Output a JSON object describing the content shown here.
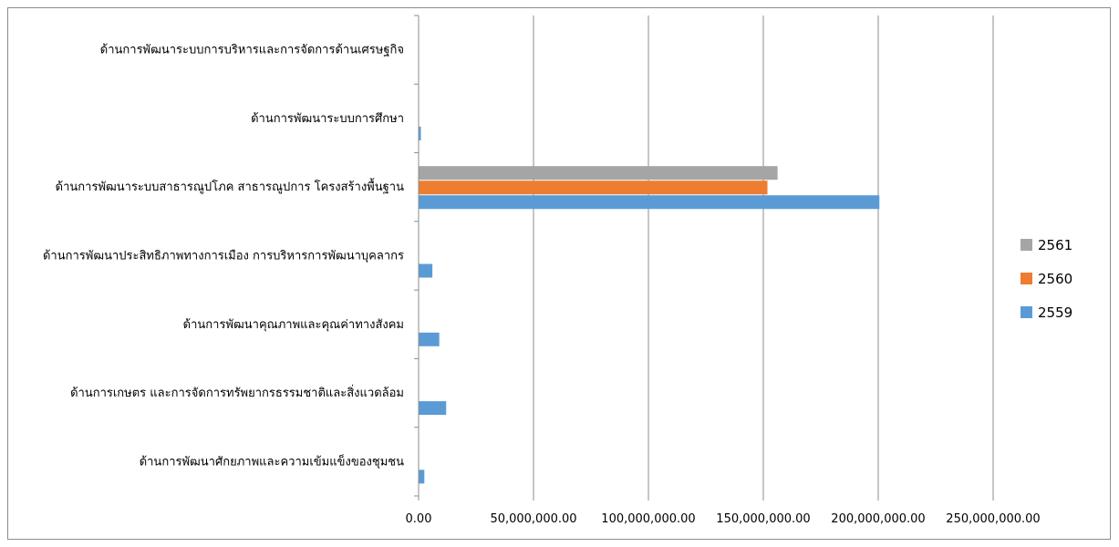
{
  "chart_data": {
    "type": "bar",
    "orientation": "horizontal",
    "categories": [
      "ด้านการพัฒนาศักยภาพและความเข้มแข็งของชุมชน",
      "ด้านการเกษตร และการจัดการทรัพยากรธรรมชาติและสิ่งแวดล้อม",
      "ด้านการพัฒนาคุณภาพและคุณค่าทางสังคม",
      "ด้านการพัฒนาประสิทธิภาพทางการเมือง การบริหารการพัฒนาบุคลากร",
      "ด้านการพัฒนาระบบสาธารณูปโภค สาธารณูปการ โครงสร้างพื้นฐาน",
      "ด้านการพัฒนาระบบการศึกษา",
      "ด้านการพัฒนาระบบการบริหารและการจัดการด้านเศรษฐกิจ"
    ],
    "series": [
      {
        "name": "2559",
        "color": "#5b9bd5",
        "values": [
          2500000,
          12000000,
          9000000,
          6000000,
          200500000,
          1000000,
          0
        ]
      },
      {
        "name": "2560",
        "color": "#ed7d31",
        "values": [
          0,
          0,
          0,
          0,
          151800000,
          0,
          0
        ]
      },
      {
        "name": "2561",
        "color": "#a5a5a5",
        "values": [
          0,
          0,
          0,
          0,
          156200000,
          0,
          0
        ]
      }
    ],
    "x_ticks": [
      0,
      50000000,
      100000000,
      150000000,
      200000000,
      250000000
    ],
    "x_tick_labels": [
      "0.00",
      "50,000,000.00",
      "100,000,000.00",
      "150,000,000.00",
      "200,000,000.00",
      "250,000,000.00"
    ],
    "xlim": [
      0,
      250000000
    ],
    "grid": "vertical",
    "legend_position": "right",
    "legend_order": [
      "2561",
      "2560",
      "2559"
    ]
  }
}
